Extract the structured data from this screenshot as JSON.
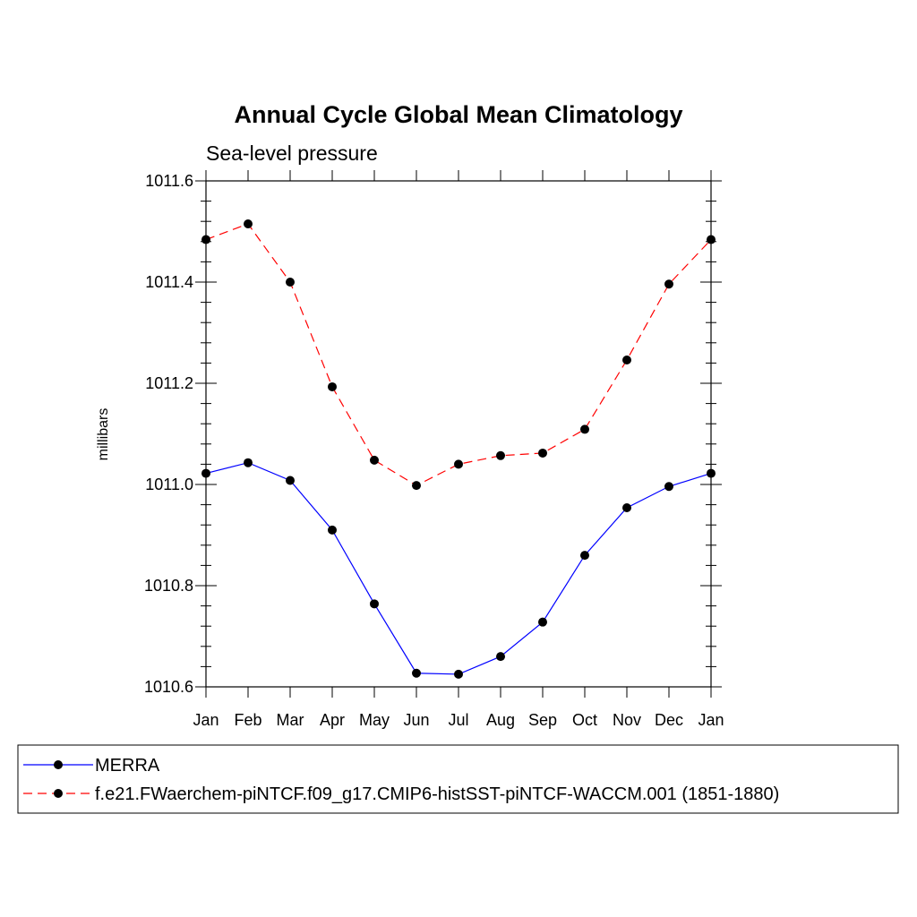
{
  "chart_data": {
    "type": "line",
    "title": "Annual Cycle Global Mean Climatology",
    "subtitle": "Sea-level pressure",
    "xlabel": "",
    "ylabel": "millibars",
    "categories": [
      "Jan",
      "Feb",
      "Mar",
      "Apr",
      "May",
      "Jun",
      "Jul",
      "Aug",
      "Sep",
      "Oct",
      "Nov",
      "Dec",
      "Jan"
    ],
    "ylim": [
      1010.6,
      1011.6
    ],
    "yticks": [
      "1010.6",
      "1010.8",
      "1011.0",
      "1011.2",
      "1011.4",
      "1011.6"
    ],
    "yticks_values": [
      1010.6,
      1010.8,
      1011.0,
      1011.2,
      1011.4,
      1011.6
    ],
    "series": [
      {
        "name": "MERRA",
        "color": "#0000ff",
        "dash": "solid",
        "values": [
          1011.022,
          1011.043,
          1011.008,
          1010.91,
          1010.764,
          1010.627,
          1010.625,
          1010.66,
          1010.728,
          1010.86,
          1010.954,
          1010.996,
          1011.022
        ]
      },
      {
        "name": "f.e21.FWaerchem-piNTCF.f09_g17.CMIP6-histSST-piNTCF-WACCM.001 (1851-1880)",
        "color": "#ff0000",
        "dash": "dashed",
        "values": [
          1011.484,
          1011.515,
          1011.4,
          1011.193,
          1011.048,
          1010.998,
          1011.04,
          1011.057,
          1011.062,
          1011.109,
          1011.246,
          1011.396,
          1011.484
        ]
      }
    ],
    "marker_color": "#000000",
    "grid": false,
    "legend_position": "bottom"
  }
}
